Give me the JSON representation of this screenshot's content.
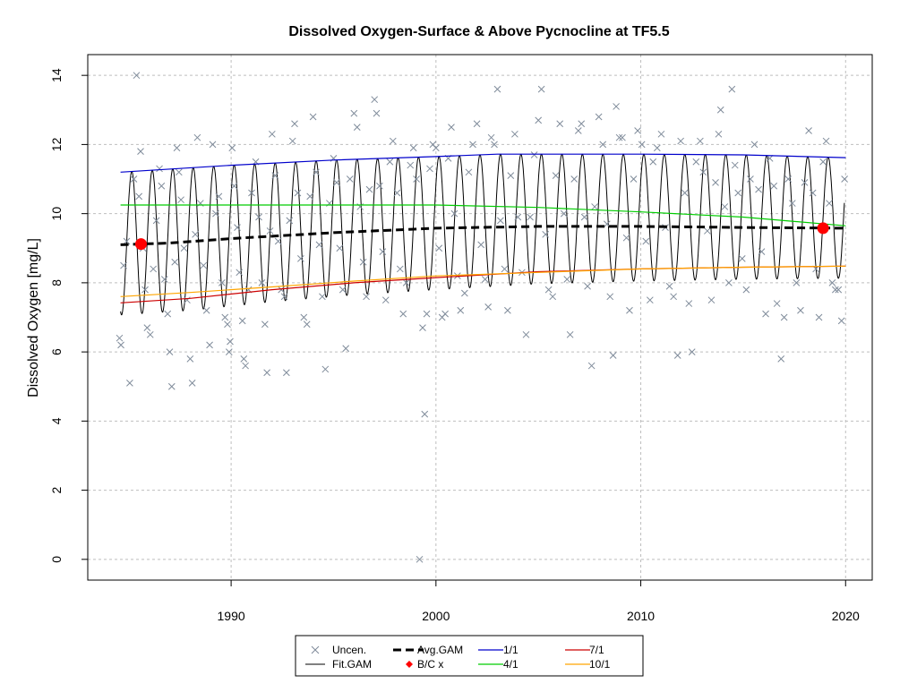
{
  "chart_data": {
    "type": "scatter",
    "title": "Dissolved Oxygen-Surface & Above Pycnocline at TF5.5",
    "xlabel": "",
    "ylabel": "Dissolved Oxygen [mg/L]",
    "xlim": [
      1983.0,
      2021.3
    ],
    "ylim": [
      -0.6,
      14.6
    ],
    "grid": true,
    "legend_position": "bottom-center",
    "x_ticks": [
      1990,
      2000,
      2010,
      2020
    ],
    "y_ticks": [
      0,
      2,
      4,
      6,
      8,
      10,
      12,
      14
    ],
    "legend": {
      "uncen": "Uncen.",
      "fit": "Fit.GAM",
      "avg": "Avg.GAM",
      "bc": "B/C x",
      "s1": "1/1",
      "s4": "4/1",
      "s7": "7/1",
      "s10": "10/1"
    },
    "colors": {
      "points": "#7f8b9a",
      "fit": "#000000",
      "avg": "#000000",
      "bc": "#ff0000",
      "s1": "#0000cc",
      "s4": "#00cc00",
      "s7": "#cc0000",
      "s10": "#ffa500",
      "grid": "#bebebe"
    },
    "observations": [
      [
        1984.55,
        6.4
      ],
      [
        1984.62,
        6.2
      ],
      [
        1984.75,
        8.5
      ],
      [
        1984.9,
        9.2
      ],
      [
        1985.05,
        5.1
      ],
      [
        1985.25,
        11.0
      ],
      [
        1985.38,
        14.0
      ],
      [
        1985.5,
        10.5
      ],
      [
        1985.58,
        11.8
      ],
      [
        1985.7,
        9.0
      ],
      [
        1985.8,
        7.8
      ],
      [
        1985.9,
        6.7
      ],
      [
        1986.05,
        6.5
      ],
      [
        1986.2,
        8.4
      ],
      [
        1986.35,
        9.8
      ],
      [
        1986.5,
        11.3
      ],
      [
        1986.6,
        10.8
      ],
      [
        1986.75,
        8.1
      ],
      [
        1986.9,
        7.1
      ],
      [
        1987.0,
        6.0
      ],
      [
        1987.1,
        5.0
      ],
      [
        1987.25,
        8.6
      ],
      [
        1987.35,
        11.9
      ],
      [
        1987.45,
        11.2
      ],
      [
        1987.55,
        10.4
      ],
      [
        1987.7,
        9.0
      ],
      [
        1987.85,
        7.5
      ],
      [
        1988.0,
        5.8
      ],
      [
        1988.1,
        5.1
      ],
      [
        1988.25,
        9.4
      ],
      [
        1988.35,
        12.2
      ],
      [
        1988.5,
        10.3
      ],
      [
        1988.65,
        8.5
      ],
      [
        1988.8,
        7.2
      ],
      [
        1988.95,
        6.2
      ],
      [
        1989.1,
        12.0
      ],
      [
        1989.25,
        10.0
      ],
      [
        1989.4,
        10.5
      ],
      [
        1989.55,
        8.0
      ],
      [
        1989.7,
        7.0
      ],
      [
        1989.82,
        6.8
      ],
      [
        1989.9,
        6.0
      ],
      [
        1989.95,
        6.3
      ],
      [
        1990.05,
        11.9
      ],
      [
        1990.15,
        10.8
      ],
      [
        1990.3,
        9.6
      ],
      [
        1990.4,
        8.3
      ],
      [
        1990.55,
        6.9
      ],
      [
        1990.62,
        5.8
      ],
      [
        1990.7,
        5.6
      ],
      [
        1990.85,
        7.8
      ],
      [
        1991.0,
        10.6
      ],
      [
        1991.2,
        11.5
      ],
      [
        1991.35,
        9.9
      ],
      [
        1991.5,
        8.0
      ],
      [
        1991.65,
        6.8
      ],
      [
        1991.75,
        5.4
      ],
      [
        1991.9,
        9.5
      ],
      [
        1992.0,
        12.3
      ],
      [
        1992.15,
        11.1
      ],
      [
        1992.3,
        9.2
      ],
      [
        1992.45,
        7.8
      ],
      [
        1992.6,
        7.6
      ],
      [
        1992.7,
        5.4
      ],
      [
        1992.85,
        9.8
      ],
      [
        1993.0,
        12.1
      ],
      [
        1993.1,
        12.6
      ],
      [
        1993.25,
        10.6
      ],
      [
        1993.4,
        8.7
      ],
      [
        1993.55,
        7.0
      ],
      [
        1993.7,
        6.8
      ],
      [
        1993.85,
        10.5
      ],
      [
        1994.0,
        12.8
      ],
      [
        1994.15,
        11.2
      ],
      [
        1994.3,
        9.1
      ],
      [
        1994.45,
        7.6
      ],
      [
        1994.6,
        5.5
      ],
      [
        1994.8,
        10.3
      ],
      [
        1995.0,
        11.6
      ],
      [
        1995.15,
        10.9
      ],
      [
        1995.3,
        9.0
      ],
      [
        1995.45,
        7.8
      ],
      [
        1995.6,
        6.1
      ],
      [
        1995.8,
        11.0
      ],
      [
        1996.0,
        12.9
      ],
      [
        1996.15,
        12.5
      ],
      [
        1996.3,
        10.2
      ],
      [
        1996.45,
        8.6
      ],
      [
        1996.6,
        7.6
      ],
      [
        1996.75,
        10.7
      ],
      [
        1997.0,
        13.3
      ],
      [
        1997.1,
        12.9
      ],
      [
        1997.25,
        10.8
      ],
      [
        1997.4,
        8.9
      ],
      [
        1997.55,
        7.5
      ],
      [
        1997.75,
        11.5
      ],
      [
        1997.9,
        12.1
      ],
      [
        1998.1,
        10.6
      ],
      [
        1998.25,
        8.4
      ],
      [
        1998.4,
        7.1
      ],
      [
        1998.55,
        8.0
      ],
      [
        1998.75,
        11.4
      ],
      [
        1998.9,
        11.9
      ],
      [
        1999.05,
        11.0
      ],
      [
        1999.2,
        0.0
      ],
      [
        1999.35,
        6.7
      ],
      [
        1999.45,
        4.2
      ],
      [
        1999.55,
        7.1
      ],
      [
        1999.7,
        11.3
      ],
      [
        1999.85,
        12.0
      ],
      [
        2000.0,
        11.9
      ],
      [
        2000.15,
        9.0
      ],
      [
        2000.3,
        7.0
      ],
      [
        2000.45,
        7.1
      ],
      [
        2000.6,
        11.6
      ],
      [
        2000.75,
        12.5
      ],
      [
        2000.9,
        10.0
      ],
      [
        2001.05,
        8.2
      ],
      [
        2001.2,
        7.2
      ],
      [
        2001.4,
        7.7
      ],
      [
        2001.6,
        11.2
      ],
      [
        2001.8,
        12.0
      ],
      [
        2002.0,
        12.6
      ],
      [
        2002.2,
        9.1
      ],
      [
        2002.4,
        8.1
      ],
      [
        2002.55,
        7.3
      ],
      [
        2002.7,
        12.2
      ],
      [
        2002.85,
        12.0
      ],
      [
        2003.0,
        13.6
      ],
      [
        2003.15,
        9.8
      ],
      [
        2003.35,
        8.4
      ],
      [
        2003.5,
        7.2
      ],
      [
        2003.65,
        11.1
      ],
      [
        2003.85,
        12.3
      ],
      [
        2004.0,
        9.9
      ],
      [
        2004.2,
        8.3
      ],
      [
        2004.4,
        6.5
      ],
      [
        2004.6,
        9.9
      ],
      [
        2004.8,
        11.7
      ],
      [
        2005.0,
        12.7
      ],
      [
        2005.15,
        13.6
      ],
      [
        2005.35,
        9.4
      ],
      [
        2005.5,
        7.8
      ],
      [
        2005.7,
        7.6
      ],
      [
        2005.85,
        11.1
      ],
      [
        2006.05,
        12.6
      ],
      [
        2006.25,
        10.0
      ],
      [
        2006.4,
        8.1
      ],
      [
        2006.55,
        6.5
      ],
      [
        2006.75,
        11.0
      ],
      [
        2006.95,
        12.4
      ],
      [
        2007.1,
        12.6
      ],
      [
        2007.25,
        9.9
      ],
      [
        2007.4,
        7.9
      ],
      [
        2007.6,
        5.6
      ],
      [
        2007.75,
        10.2
      ],
      [
        2007.95,
        12.8
      ],
      [
        2008.15,
        12.0
      ],
      [
        2008.35,
        9.7
      ],
      [
        2008.5,
        7.6
      ],
      [
        2008.65,
        5.9
      ],
      [
        2008.8,
        13.1
      ],
      [
        2008.95,
        12.2
      ],
      [
        2009.1,
        12.2
      ],
      [
        2009.3,
        9.3
      ],
      [
        2009.45,
        7.2
      ],
      [
        2009.65,
        11.0
      ],
      [
        2009.85,
        12.4
      ],
      [
        2010.05,
        12.0
      ],
      [
        2010.25,
        9.2
      ],
      [
        2010.45,
        7.5
      ],
      [
        2010.6,
        11.5
      ],
      [
        2010.8,
        11.9
      ],
      [
        2011.0,
        12.3
      ],
      [
        2011.2,
        9.6
      ],
      [
        2011.4,
        7.9
      ],
      [
        2011.6,
        7.6
      ],
      [
        2011.8,
        5.9
      ],
      [
        2011.95,
        12.1
      ],
      [
        2012.15,
        10.6
      ],
      [
        2012.35,
        7.4
      ],
      [
        2012.5,
        6.0
      ],
      [
        2012.7,
        11.5
      ],
      [
        2012.9,
        12.1
      ],
      [
        2013.05,
        11.2
      ],
      [
        2013.25,
        9.5
      ],
      [
        2013.45,
        7.5
      ],
      [
        2013.65,
        10.9
      ],
      [
        2013.8,
        12.3
      ],
      [
        2013.9,
        13.0
      ],
      [
        2014.1,
        10.2
      ],
      [
        2014.3,
        8.0
      ],
      [
        2014.45,
        13.6
      ],
      [
        2014.6,
        11.4
      ],
      [
        2014.75,
        10.6
      ],
      [
        2014.95,
        8.7
      ],
      [
        2015.15,
        7.8
      ],
      [
        2015.35,
        11.0
      ],
      [
        2015.55,
        12.0
      ],
      [
        2015.75,
        10.7
      ],
      [
        2015.9,
        8.9
      ],
      [
        2016.1,
        7.1
      ],
      [
        2016.3,
        11.6
      ],
      [
        2016.5,
        10.8
      ],
      [
        2016.65,
        7.4
      ],
      [
        2016.85,
        5.8
      ],
      [
        2017.0,
        7.0
      ],
      [
        2017.2,
        11.0
      ],
      [
        2017.4,
        10.3
      ],
      [
        2017.6,
        8.0
      ],
      [
        2017.8,
        7.2
      ],
      [
        2018.0,
        10.9
      ],
      [
        2018.2,
        12.4
      ],
      [
        2018.4,
        10.6
      ],
      [
        2018.55,
        8.4
      ],
      [
        2018.7,
        7.0
      ],
      [
        2018.9,
        11.5
      ],
      [
        2019.05,
        12.1
      ],
      [
        2019.2,
        10.3
      ],
      [
        2019.35,
        8.0
      ],
      [
        2019.5,
        7.8
      ],
      [
        2019.65,
        7.8
      ],
      [
        2019.8,
        6.9
      ],
      [
        2019.95,
        11.0
      ]
    ],
    "bc_points": [
      [
        1985.6,
        9.12
      ],
      [
        2018.9,
        9.58
      ]
    ],
    "lines": {
      "s1": [
        [
          1984.6,
          11.2
        ],
        [
          1990,
          11.4
        ],
        [
          1995,
          11.55
        ],
        [
          2000,
          11.65
        ],
        [
          2003,
          11.72
        ],
        [
          2010,
          11.72
        ],
        [
          2015,
          11.7
        ],
        [
          2020,
          11.62
        ]
      ],
      "s4": [
        [
          1984.6,
          10.25
        ],
        [
          1990,
          10.25
        ],
        [
          1995,
          10.25
        ],
        [
          2000,
          10.25
        ],
        [
          2005,
          10.18
        ],
        [
          2010,
          10.05
        ],
        [
          2015,
          9.9
        ],
        [
          2020,
          9.65
        ]
      ],
      "s7": [
        [
          1984.6,
          7.42
        ],
        [
          1988,
          7.55
        ],
        [
          1992,
          7.8
        ],
        [
          1996,
          8.0
        ],
        [
          2000,
          8.15
        ],
        [
          2005,
          8.32
        ],
        [
          2010,
          8.4
        ],
        [
          2015,
          8.45
        ],
        [
          2020,
          8.48
        ]
      ],
      "s10": [
        [
          1984.6,
          7.6
        ],
        [
          1988,
          7.72
        ],
        [
          1992,
          7.88
        ],
        [
          1996,
          8.05
        ],
        [
          2000,
          8.2
        ],
        [
          2005,
          8.3
        ],
        [
          2010,
          8.4
        ],
        [
          2015,
          8.45
        ],
        [
          2020,
          8.48
        ]
      ],
      "avg": [
        [
          1984.6,
          9.1
        ],
        [
          1987,
          9.15
        ],
        [
          1990,
          9.28
        ],
        [
          1995,
          9.45
        ],
        [
          2000,
          9.58
        ],
        [
          2005,
          9.63
        ],
        [
          2010,
          9.63
        ],
        [
          2015,
          9.6
        ],
        [
          2020,
          9.58
        ]
      ]
    }
  }
}
